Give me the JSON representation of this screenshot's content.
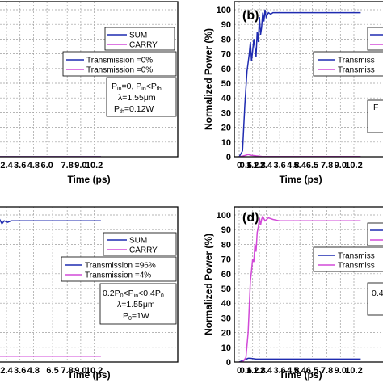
{
  "colors": {
    "sum": "#1f2bb0",
    "carry": "#d24ad8"
  },
  "chart_data": [
    {
      "panel": "a",
      "type": "line",
      "xlabel": "Time (ps)",
      "ylabel": "",
      "xlim": [
        0,
        10.8
      ],
      "ylim": [
        0,
        100
      ],
      "x_ticks": [
        "2.4",
        "3.6",
        "4.8",
        "6.0",
        "7.8",
        "9.0",
        "10.2"
      ],
      "x_tick_values": [
        2.4,
        3.6,
        4.8,
        6.0,
        7.8,
        9.0,
        10.2
      ],
      "legend": [
        "SUM",
        "CARRY"
      ],
      "legend2": [
        "Transmission =0%",
        "Transmission =0%"
      ],
      "annotation": [
        "Pin=0, Pin<Pth",
        "λ=1.55μm",
        "Pth=0.12W"
      ],
      "series": [
        {
          "name": "SUM",
          "color": "sum",
          "x": [
            0,
            10.8
          ],
          "y": [
            0,
            0
          ]
        },
        {
          "name": "CARRY",
          "color": "carry",
          "x": [
            0,
            10.8
          ],
          "y": [
            0,
            0
          ]
        }
      ]
    },
    {
      "panel": "b",
      "type": "line",
      "label": "(b)",
      "xlabel": "Time (ps)",
      "ylabel": "Normalized Power (%)",
      "xlim": [
        0,
        10.8
      ],
      "ylim": [
        0,
        100
      ],
      "x_ticks": [
        "0",
        "0.6",
        "1.2",
        "1.8",
        "2.4",
        "3.6",
        "4.8",
        "5.4",
        "6.5",
        "7.8",
        "9.0",
        "10.2"
      ],
      "x_tick_values": [
        0,
        0.6,
        1.2,
        1.8,
        2.4,
        3.6,
        4.8,
        5.4,
        6.5,
        7.8,
        9.0,
        10.2
      ],
      "y_ticks": [
        "0",
        "10",
        "20",
        "30",
        "40",
        "50",
        "60",
        "70",
        "80",
        "90",
        "100"
      ],
      "legend2": [
        "Transmiss",
        "Transmiss"
      ],
      "annotation": [
        "F"
      ],
      "series": [
        {
          "name": "SUM",
          "color": "sum",
          "x": [
            0,
            0.3,
            0.5,
            0.7,
            0.9,
            1.0,
            1.1,
            1.2,
            1.3,
            1.4,
            1.5,
            1.6,
            1.7,
            1.8,
            1.9,
            2.0,
            2.1,
            2.2,
            2.3,
            2.4,
            2.6,
            2.8,
            3.0,
            3.6,
            4.8,
            6.5,
            7.8,
            9.0,
            10.2,
            10.8
          ],
          "y": [
            0,
            4,
            35,
            58,
            70,
            78,
            65,
            72,
            80,
            74,
            68,
            85,
            78,
            95,
            83,
            88,
            98,
            92,
            100,
            95,
            98,
            97,
            98,
            98,
            98,
            98,
            98,
            98,
            98,
            98
          ]
        },
        {
          "name": "CARRY",
          "color": "carry",
          "x": [
            0,
            0.5,
            0.8,
            1.1,
            1.5,
            2.0,
            3.0,
            10.8
          ],
          "y": [
            0,
            0.8,
            1.5,
            1.0,
            0.6,
            0.2,
            0.1,
            0.1
          ]
        }
      ]
    },
    {
      "panel": "c",
      "type": "line",
      "xlabel": "Time (ps)",
      "ylabel": "",
      "xlim": [
        0,
        10.8
      ],
      "ylim": [
        0,
        100
      ],
      "x_ticks": [
        "2.4",
        "3.6",
        "4.8",
        "6.5",
        "7.8",
        "9.0",
        "10.2"
      ],
      "x_tick_values": [
        2.4,
        3.6,
        4.8,
        6.5,
        7.8,
        9.0,
        10.2
      ],
      "legend": [
        "SUM",
        "CARRY"
      ],
      "legend2": [
        "Transmission =96%",
        "Transmission =4%"
      ],
      "annotation": [
        "0.2P0<Pin<0.4P0",
        "λ=1.55μm",
        "P0=1W"
      ],
      "series": [
        {
          "name": "SUM",
          "color": "sum",
          "x": [
            0.5,
            0.8,
            1.0,
            1.2,
            1.4,
            1.6,
            1.8,
            2.0,
            2.2,
            2.5,
            2.8,
            3.2,
            10.8
          ],
          "y": [
            92,
            96,
            100,
            90,
            99,
            92,
            97,
            94,
            96,
            95,
            96,
            96,
            96
          ]
        },
        {
          "name": "CARRY",
          "color": "carry",
          "x": [
            0,
            10.8
          ],
          "y": [
            4,
            4
          ]
        }
      ]
    },
    {
      "panel": "d",
      "type": "line",
      "label": "(d)",
      "xlabel": "Time (ps)",
      "ylabel": "Normalized Power (%)",
      "xlim": [
        0,
        10.8
      ],
      "ylim": [
        0,
        100
      ],
      "x_ticks": [
        "0",
        "0.6",
        "1.2",
        "1.8",
        "2.4",
        "3.6",
        "4.8",
        "5.4",
        "6.5",
        "7.8",
        "9.0",
        "10.2"
      ],
      "x_tick_values": [
        0,
        0.6,
        1.2,
        1.8,
        2.4,
        3.6,
        4.8,
        5.4,
        6.5,
        7.8,
        9.0,
        10.2
      ],
      "y_ticks": [
        "0",
        "10",
        "20",
        "30",
        "40",
        "50",
        "60",
        "70",
        "80",
        "90",
        "100"
      ],
      "legend2": [
        "Transmiss",
        "Transmiss"
      ],
      "annotation": [
        "0.4"
      ],
      "series": [
        {
          "name": "SUM",
          "color": "sum",
          "x": [
            0,
            0.5,
            0.8,
            1.0,
            1.5,
            2.0,
            3.0,
            10.8
          ],
          "y": [
            0,
            1.5,
            2.5,
            2.5,
            2.0,
            2.0,
            2.0,
            2.0
          ]
        },
        {
          "name": "CARRY",
          "color": "carry",
          "x": [
            0,
            0.3,
            0.6,
            0.8,
            1.0,
            1.1,
            1.2,
            1.3,
            1.4,
            1.5,
            1.6,
            1.7,
            1.8,
            1.9,
            2.0,
            2.1,
            2.3,
            2.6,
            3.0,
            3.6,
            10.8
          ],
          "y": [
            0,
            0,
            3,
            20,
            55,
            62,
            70,
            68,
            80,
            75,
            88,
            92,
            98,
            93,
            97,
            99,
            96,
            98,
            97,
            96,
            96
          ]
        }
      ]
    }
  ]
}
